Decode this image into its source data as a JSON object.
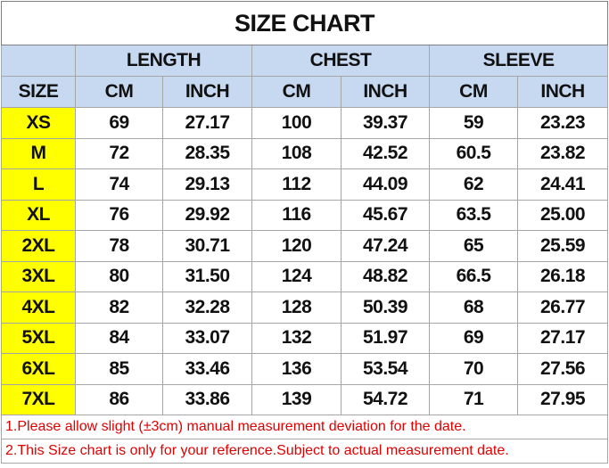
{
  "table": {
    "title": "SIZE CHART",
    "groups": [
      "LENGTH",
      "CHEST",
      "SLEEVE"
    ],
    "size_label": "SIZE",
    "units": [
      "CM",
      "INCH",
      "CM",
      "INCH",
      "CM",
      "INCH"
    ],
    "rows": [
      [
        "XS",
        "69",
        "27.17",
        "100",
        "39.37",
        "59",
        "23.23"
      ],
      [
        "M",
        "72",
        "28.35",
        "108",
        "42.52",
        "60.5",
        "23.82"
      ],
      [
        "L",
        "74",
        "29.13",
        "112",
        "44.09",
        "62",
        "24.41"
      ],
      [
        "XL",
        "76",
        "29.92",
        "116",
        "45.67",
        "63.5",
        "25.00"
      ],
      [
        "2XL",
        "78",
        "30.71",
        "120",
        "47.24",
        "65",
        "25.59"
      ],
      [
        "3XL",
        "80",
        "31.50",
        "124",
        "48.82",
        "66.5",
        "26.18"
      ],
      [
        "4XL",
        "82",
        "32.28",
        "128",
        "50.39",
        "68",
        "26.77"
      ],
      [
        "5XL",
        "84",
        "33.07",
        "132",
        "51.97",
        "69",
        "27.17"
      ],
      [
        "6XL",
        "85",
        "33.46",
        "136",
        "53.54",
        "70",
        "27.56"
      ],
      [
        "7XL",
        "86",
        "33.86",
        "139",
        "54.72",
        "71",
        "27.95"
      ]
    ],
    "notes": [
      "1.Please allow slight (±3cm) manual measurement deviation for the date.",
      "2.This Size chart is only for your reference.Subject to actual measurement date."
    ]
  }
}
